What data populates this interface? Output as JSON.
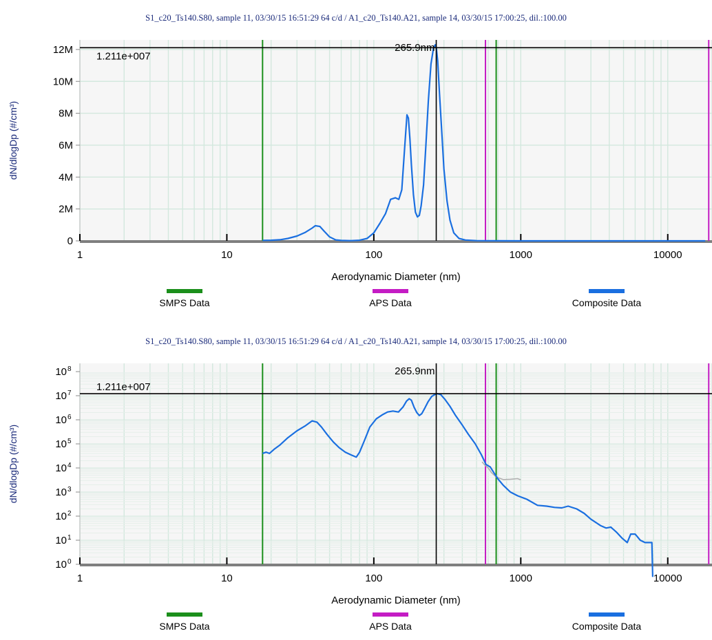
{
  "chart_data": [
    {
      "type": "line",
      "title": "S1_c20_Ts140.S80, sample 11, 03/30/15 16:51:29  64 c/d   /  A1_c20_Ts140.A21, sample 14, 03/30/15 17:00:25, dil.:100.00",
      "xlabel": "Aerodynamic Diameter (nm)",
      "ylabel": "dN/dlogDp (#/cm³)",
      "x_scale": "log",
      "y_scale": "linear",
      "xlim": [
        1,
        20000
      ],
      "ylim": [
        0,
        12600000
      ],
      "x_ticks": [
        1,
        10,
        100,
        1000,
        10000
      ],
      "x_tick_labels": [
        "1",
        "10",
        "100",
        "1000",
        "10000"
      ],
      "y_ticks": [
        0,
        2000000,
        4000000,
        6000000,
        8000000,
        10000000,
        12000000
      ],
      "y_tick_labels": [
        "0",
        "2M",
        "4M",
        "6M",
        "8M",
        "10M",
        "12M"
      ],
      "cursor": {
        "x": 265.9,
        "x_label": "265.9nm",
        "y": 12110000,
        "y_label": "1.211e+007"
      },
      "markers": [
        {
          "series": "SMPS Data",
          "x": 17.5
        },
        {
          "series": "APS Data",
          "x": 575
        },
        {
          "series": "SMPS Data",
          "x": 680
        },
        {
          "series": "APS Data",
          "x": 19000
        }
      ],
      "grid": true,
      "legend": "bottom",
      "legend_entries": [
        {
          "name": "SMPS Data",
          "color": "#1b8f1b"
        },
        {
          "name": "APS Data",
          "color": "#c41cc4"
        },
        {
          "name": "Composite Data",
          "color": "#1a6fe0"
        }
      ],
      "series": [
        {
          "name": "Composite Data",
          "color": "#1a6fe0",
          "x": [
            17.5,
            20,
            23,
            26,
            30,
            34,
            38,
            40,
            43,
            46,
            50,
            55,
            60,
            70,
            80,
            90,
            100,
            110,
            120,
            130,
            140,
            148,
            155,
            162,
            168,
            172,
            176,
            180,
            186,
            192,
            198,
            204,
            210,
            218,
            226,
            235,
            245,
            255,
            262,
            266,
            272,
            280,
            290,
            300,
            315,
            330,
            350,
            380,
            420,
            500,
            700,
            1000,
            5000,
            18000
          ],
          "y": [
            30000,
            40000,
            70000,
            150000,
            300000,
            520000,
            800000,
            950000,
            900000,
            600000,
            250000,
            60000,
            25000,
            15000,
            40000,
            150000,
            500000,
            1100000,
            1700000,
            2600000,
            2700000,
            2600000,
            3200000,
            5800000,
            7900000,
            7700000,
            6400000,
            4800000,
            2900000,
            1800000,
            1500000,
            1600000,
            2200000,
            3500000,
            6000000,
            8800000,
            11100000,
            12110000,
            12300000,
            12110000,
            11300000,
            9200000,
            6800000,
            4500000,
            2500000,
            1300000,
            500000,
            150000,
            50000,
            15000,
            3000,
            700,
            30,
            10
          ]
        }
      ]
    },
    {
      "type": "line",
      "title": "S1_c20_Ts140.S80, sample 11, 03/30/15 16:51:29  64 c/d   /  A1_c20_Ts140.A21, sample 14, 03/30/15 17:00:25, dil.:100.00",
      "xlabel": "Aerodynamic Diameter (nm)",
      "ylabel": "dN/dlogDp (#/cm³)",
      "x_scale": "log",
      "y_scale": "log",
      "xlim": [
        1,
        20000
      ],
      "ylim": [
        1,
        100000000
      ],
      "x_ticks": [
        1,
        10,
        100,
        1000,
        10000
      ],
      "x_tick_labels": [
        "1",
        "10",
        "100",
        "1000",
        "10000"
      ],
      "y_ticks": [
        1,
        10,
        100,
        1000,
        10000,
        100000,
        1000000,
        10000000,
        100000000
      ],
      "y_tick_labels": [
        "10",
        "10",
        "10",
        "10",
        "10",
        "10",
        "10",
        "10",
        "10"
      ],
      "y_tick_exponents": [
        "0",
        "1",
        "2",
        "3",
        "4",
        "5",
        "6",
        "7",
        "8"
      ],
      "cursor": {
        "x": 265.9,
        "x_label": "265.9nm",
        "y": 12110000,
        "y_label": "1.211e+007"
      },
      "markers": [
        {
          "series": "SMPS Data",
          "x": 17.5
        },
        {
          "series": "APS Data",
          "x": 575
        },
        {
          "series": "SMPS Data",
          "x": 680
        },
        {
          "series": "APS Data",
          "x": 19000
        }
      ],
      "grid": true,
      "legend": "bottom",
      "legend_entries": [
        {
          "name": "SMPS Data",
          "color": "#1b8f1b"
        },
        {
          "name": "APS Data",
          "color": "#c41cc4"
        },
        {
          "name": "Composite Data",
          "color": "#1a6fe0"
        }
      ],
      "series": [
        {
          "name": "Composite Data",
          "color": "#1a6fe0",
          "x": [
            17.5,
            18.5,
            19.5,
            21,
            23,
            26,
            30,
            34,
            38,
            41,
            44,
            48,
            53,
            58,
            64,
            70,
            76,
            80,
            86,
            94,
            104,
            114,
            124,
            135,
            147,
            158,
            167,
            174,
            180,
            188,
            196,
            204,
            212,
            222,
            234,
            248,
            262,
            270,
            285,
            305,
            330,
            360,
            400,
            440,
            490,
            540,
            580,
            620,
            660,
            700,
            760,
            850,
            950,
            1100,
            1300,
            1500,
            1700,
            1900,
            2100,
            2400,
            2700,
            3000,
            3500,
            3800,
            4100,
            4500,
            4900,
            5300,
            5600,
            6000,
            6500,
            7000,
            7800,
            7900
          ],
          "y": [
            40000,
            45000,
            40000,
            60000,
            90000,
            180000,
            350000,
            550000,
            900000,
            800000,
            500000,
            250000,
            120000,
            70000,
            45000,
            35000,
            28000,
            45000,
            130000,
            500000,
            1100000,
            1600000,
            2100000,
            2300000,
            2100000,
            3400000,
            6000000,
            7500000,
            6500000,
            3300000,
            2000000,
            1500000,
            1800000,
            3000000,
            5600000,
            9400000,
            11500000,
            12110000,
            11200000,
            7000000,
            3600000,
            1500000,
            600000,
            250000,
            100000,
            35000,
            14000,
            11000,
            6000,
            3500,
            1900,
            1000,
            700,
            500,
            280,
            260,
            230,
            220,
            260,
            200,
            130,
            75,
            40,
            32,
            35,
            21,
            12,
            8,
            18,
            18,
            10,
            8,
            8,
            0.3
          ]
        },
        {
          "name": "APS",
          "color": "#b0b0b0",
          "x": [
            545,
            570,
            600,
            630,
            680,
            760,
            850,
            950,
            1000
          ],
          "y": [
            18000,
            13000,
            10000,
            6500,
            4200,
            3300,
            3400,
            3600,
            3200
          ]
        }
      ]
    }
  ]
}
